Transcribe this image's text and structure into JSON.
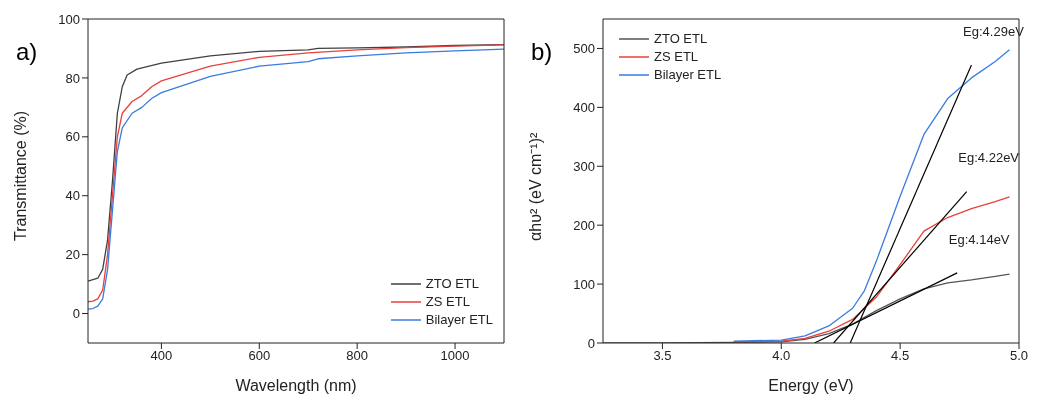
{
  "chart_data": [
    {
      "type": "line",
      "xlabel": "Wavelength (nm)",
      "ylabel": "Transmittance (%)",
      "xlim": [
        250,
        1100
      ],
      "xticks": [
        400,
        600,
        800,
        1000
      ],
      "ylim": [
        -10,
        100
      ],
      "yticks": [
        0,
        20,
        40,
        60,
        80,
        100
      ],
      "legend": "bottom right",
      "grid": false,
      "marker": "none",
      "line_style": "solid",
      "annotations": [
        "a)"
      ],
      "series": [
        {
          "name": "ZTO ETL",
          "color": "#404040",
          "x": [
            250,
            260,
            270,
            280,
            290,
            300,
            310,
            320,
            330,
            350,
            400,
            500,
            600,
            700,
            720,
            800,
            900,
            1000,
            1100
          ],
          "values": [
            11,
            11.5,
            12,
            15,
            25,
            45,
            68,
            77,
            81,
            83,
            85,
            87.5,
            89,
            89.5,
            90,
            90.2,
            90.5,
            91,
            91.3
          ]
        },
        {
          "name": "ZS ETL",
          "color": "#e8403a",
          "x": [
            250,
            260,
            270,
            280,
            290,
            300,
            310,
            320,
            340,
            360,
            380,
            400,
            500,
            600,
            700,
            800,
            900,
            1000,
            1100
          ],
          "values": [
            4,
            4.2,
            5,
            8,
            20,
            40,
            60,
            68,
            72,
            74,
            77,
            79,
            84,
            87,
            88.5,
            89.5,
            90.3,
            90.8,
            91.2
          ]
        },
        {
          "name": "Bilayer ETL",
          "color": "#3a7be0",
          "x": [
            250,
            260,
            270,
            280,
            290,
            300,
            310,
            320,
            340,
            360,
            380,
            400,
            500,
            600,
            700,
            720,
            800,
            900,
            1000,
            1100
          ],
          "values": [
            1.5,
            1.7,
            2.5,
            5,
            15,
            35,
            55,
            63,
            68,
            70,
            73,
            75,
            80.5,
            84,
            85.5,
            86.5,
            87.5,
            88.5,
            89.2,
            89.8
          ]
        }
      ]
    },
    {
      "type": "line",
      "xlabel": "Energy (eV)",
      "ylabel": "αhυ² (eV cm⁻¹)²",
      "xlim": [
        3.25,
        5.0
      ],
      "xticks": [
        {
          "value": 3.5,
          "label": "3.5"
        },
        {
          "value": 4.0,
          "label": "4.0"
        },
        {
          "value": 4.5,
          "label": "4.5"
        },
        {
          "value": 5.0,
          "label": "5.0"
        }
      ],
      "ylim": [
        0,
        550
      ],
      "yticks": [
        0,
        100,
        200,
        300,
        400,
        500
      ],
      "legend": "top left",
      "grid": false,
      "marker": "none",
      "line_style": "solid",
      "annotations": [
        "b)",
        {
          "text": "Eg:4.29eV",
          "x": 4.8,
          "y": 472
        },
        {
          "text": "Eg:4.22eV",
          "x": 4.78,
          "y": 257
        },
        {
          "text": "Eg:4.14eV",
          "x": 4.74,
          "y": 119
        }
      ],
      "series": [
        {
          "name": "ZTO ETL",
          "color": "#555555",
          "x": [
            3.25,
            3.5,
            3.8,
            4.0,
            4.1,
            4.2,
            4.3,
            4.4,
            4.5,
            4.6,
            4.7,
            4.8,
            4.9,
            4.96
          ],
          "values": [
            0,
            0,
            1,
            2,
            6,
            16,
            32,
            55,
            75,
            92,
            102,
            107,
            113,
            117
          ]
        },
        {
          "name": "ZS ETL",
          "color": "#e8403a",
          "x": [
            3.8,
            4.0,
            4.1,
            4.2,
            4.3,
            4.4,
            4.5,
            4.6,
            4.7,
            4.8,
            4.9,
            4.96
          ],
          "values": [
            2,
            3,
            8,
            20,
            40,
            78,
            133,
            190,
            213,
            228,
            240,
            248
          ]
        },
        {
          "name": "Bilayer ETL",
          "color": "#3a7be0",
          "x": [
            3.8,
            4.0,
            4.1,
            4.2,
            4.3,
            4.35,
            4.4,
            4.5,
            4.6,
            4.7,
            4.8,
            4.9,
            4.96
          ],
          "values": [
            3,
            5,
            12,
            29,
            59,
            89,
            139,
            249,
            354,
            415,
            450,
            478,
            498
          ]
        },
        {
          "type": "line",
          "color": "#000000",
          "x": [
            4.29,
            4.8
          ],
          "values": [
            0,
            472
          ]
        },
        {
          "type": "line",
          "color": "#000000",
          "x": [
            4.22,
            4.78
          ],
          "values": [
            0,
            257
          ]
        },
        {
          "type": "line",
          "color": "#000000",
          "x": [
            4.14,
            4.74
          ],
          "values": [
            0,
            119
          ]
        }
      ]
    }
  ]
}
